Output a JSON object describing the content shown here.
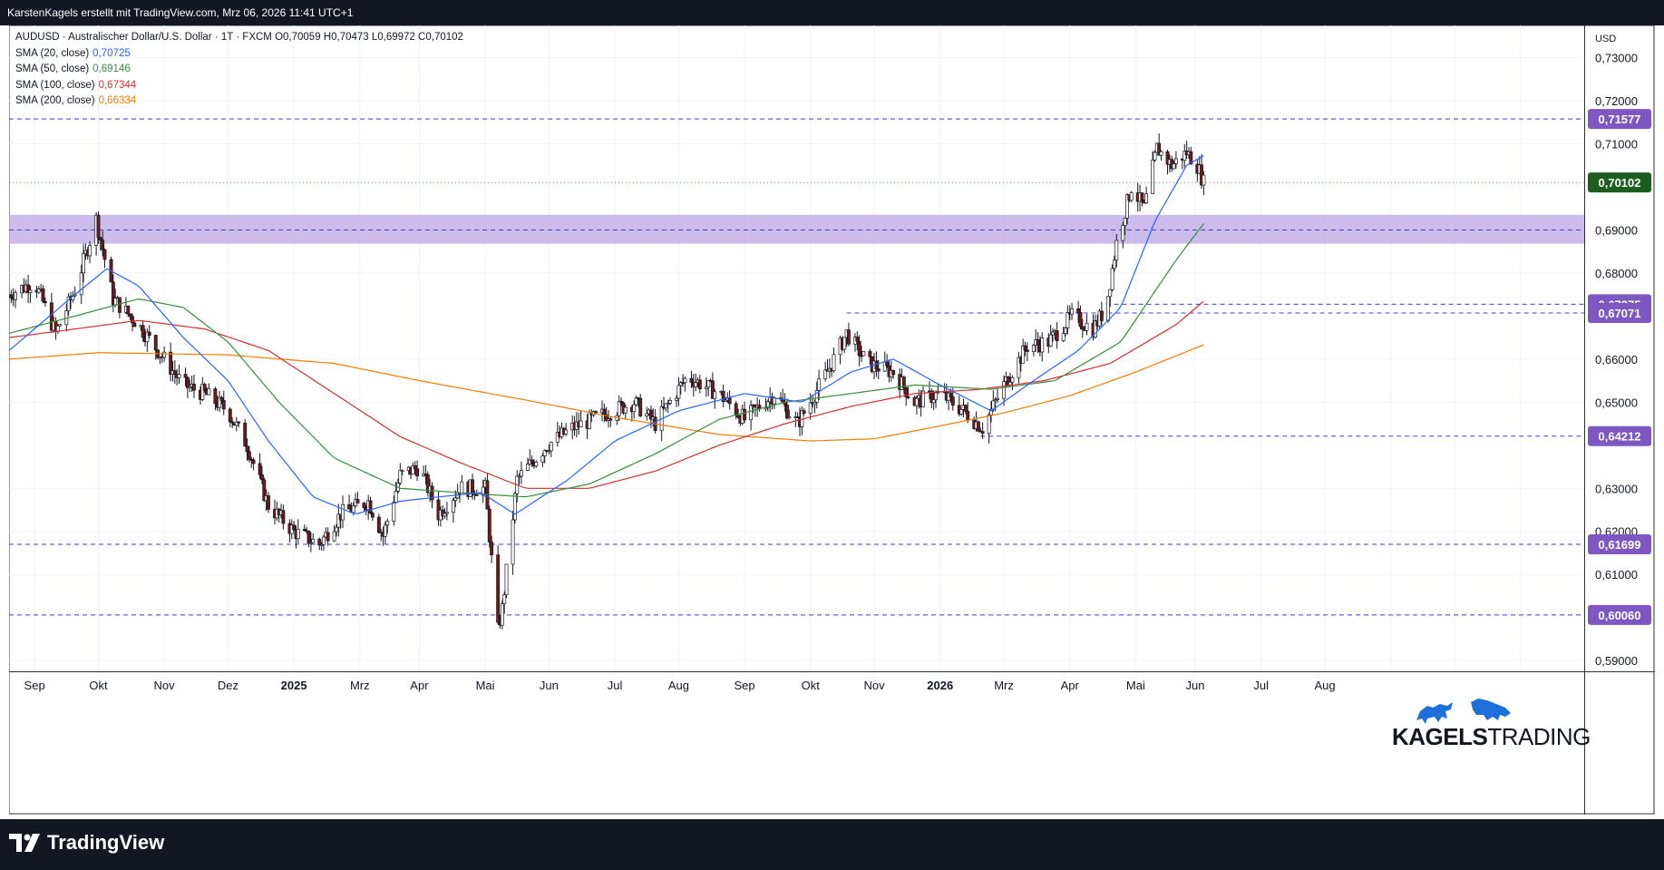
{
  "header": {
    "publisher_line": "KarstenKagels erstellt mit TradingView.com, Mrz 06, 2026 11:41 UTC+1"
  },
  "symbol_line": {
    "symbol": "AUDUSD · Australischer Dollar/U.S. Dollar · 1T · FXCM",
    "open": "O0,70059",
    "high": "H0,70473",
    "low": "L0,69972",
    "close": "C0,70102"
  },
  "indicators": [
    {
      "label": "SMA (20, close)",
      "value": "0,70725",
      "color": "#2962ff"
    },
    {
      "label": "SMA (50, close)",
      "value": "0,69146",
      "color": "#388e3c"
    },
    {
      "label": "SMA (100, close)",
      "value": "0,67344",
      "color": "#d32f2f"
    },
    {
      "label": "SMA (200, close)",
      "value": "0,66334",
      "color": "#f57c00"
    }
  ],
  "price_axis": {
    "currency": "USD",
    "ticks": [
      "0,73000",
      "0,72000",
      "0,71000",
      "0,69000",
      "0,68000",
      "0,66000",
      "0,65000",
      "0,63000",
      "0,62000",
      "0,61000",
      "0,59000"
    ],
    "tick_values": [
      0.73,
      0.72,
      0.71,
      0.69,
      0.68,
      0.66,
      0.65,
      0.63,
      0.62,
      0.61,
      0.59
    ]
  },
  "time_axis": {
    "labels": [
      "Sep",
      "Okt",
      "Nov",
      "Dez",
      "2025",
      "Mrz",
      "Apr",
      "Mai",
      "Jun",
      "Jul",
      "Aug",
      "Sep",
      "Okt",
      "Nov",
      "2026",
      "Mrz",
      "Apr",
      "Mai",
      "Jun",
      "Jul",
      "Aug"
    ],
    "bold_labels": [
      "2025",
      "2026"
    ]
  },
  "brand": {
    "tradingview": "TradingView",
    "logo_word1": "KAGELS",
    "logo_word2": "TRADING"
  },
  "colors": {
    "up_candle": "#ffffff",
    "down_candle": "#6d1c1c",
    "wick": "#131722",
    "level_line": "#3f3fd8",
    "zone": "#b9a6e6",
    "current_price": "#1b5e20",
    "level_label": "#7e57c2",
    "logo_blue": "#1e6fd9"
  },
  "chart_data": {
    "type": "candlestick",
    "symbol": "AUDUSD",
    "timeframe": "1T",
    "x_range": [
      "2024-08-20",
      "2026-08-31"
    ],
    "ylim": [
      0.5875,
      0.7375
    ],
    "grid": true,
    "legend": "top-left",
    "current_price": {
      "value": 0.70102,
      "label": "0,70102"
    },
    "horizontal_levels": [
      {
        "value": 0.71577,
        "label": "0,71577",
        "start": "2024-08-20"
      },
      {
        "value": 0.69,
        "label": "",
        "start": "2024-08-20"
      },
      {
        "value": 0.67275,
        "label": "0,67275",
        "start": "2026-01-18"
      },
      {
        "value": 0.67071,
        "label": "0,67071",
        "start": "2025-09-18"
      },
      {
        "value": 0.64212,
        "label": "0,64212",
        "start": "2025-11-20"
      },
      {
        "value": 0.61699,
        "label": "0,61699",
        "start": "2024-08-20"
      },
      {
        "value": 0.6006,
        "label": "0,60060",
        "start": "2024-08-20"
      }
    ],
    "zone": {
      "from": 0.6868,
      "to": 0.6935
    },
    "price_path": [
      [
        "2024-08-20",
        0.675
      ],
      [
        "2024-09-01",
        0.678
      ],
      [
        "2024-09-11",
        0.666
      ],
      [
        "2024-09-20",
        0.676
      ],
      [
        "2024-09-30",
        0.6925
      ],
      [
        "2024-10-08",
        0.674
      ],
      [
        "2024-10-20",
        0.668
      ],
      [
        "2024-11-01",
        0.66
      ],
      [
        "2024-11-10",
        0.654
      ],
      [
        "2024-11-20",
        0.652
      ],
      [
        "2024-12-01",
        0.648
      ],
      [
        "2024-12-10",
        0.64
      ],
      [
        "2024-12-20",
        0.626
      ],
      [
        "2025-01-01",
        0.62
      ],
      [
        "2025-01-13",
        0.617
      ],
      [
        "2025-01-23",
        0.624
      ],
      [
        "2025-02-05",
        0.627
      ],
      [
        "2025-02-12",
        0.619
      ],
      [
        "2025-02-20",
        0.633
      ],
      [
        "2025-03-01",
        0.635
      ],
      [
        "2025-03-10",
        0.624
      ],
      [
        "2025-03-20",
        0.63
      ],
      [
        "2025-04-01",
        0.63
      ],
      [
        "2025-04-07",
        0.597
      ],
      [
        "2025-04-09",
        0.602
      ],
      [
        "2025-04-16",
        0.632
      ],
      [
        "2025-04-30",
        0.64
      ],
      [
        "2025-05-12",
        0.644
      ],
      [
        "2025-05-26",
        0.647
      ],
      [
        "2025-06-10",
        0.65
      ],
      [
        "2025-06-20",
        0.645
      ],
      [
        "2025-07-05",
        0.656
      ],
      [
        "2025-07-20",
        0.652
      ],
      [
        "2025-08-01",
        0.646
      ],
      [
        "2025-08-15",
        0.652
      ],
      [
        "2025-08-26",
        0.645
      ],
      [
        "2025-09-10",
        0.658
      ],
      [
        "2025-09-18",
        0.666
      ],
      [
        "2025-09-28",
        0.659
      ],
      [
        "2025-10-10",
        0.657
      ],
      [
        "2025-10-20",
        0.65
      ],
      [
        "2025-11-01",
        0.652
      ],
      [
        "2025-11-12",
        0.648
      ],
      [
        "2025-11-21",
        0.644
      ],
      [
        "2025-12-01",
        0.654
      ],
      [
        "2025-12-12",
        0.663
      ],
      [
        "2025-12-22",
        0.664
      ],
      [
        "2026-01-02",
        0.67
      ],
      [
        "2026-01-12",
        0.667
      ],
      [
        "2026-01-18",
        0.672
      ],
      [
        "2026-01-23",
        0.687
      ],
      [
        "2026-01-30",
        0.7
      ],
      [
        "2026-02-05",
        0.695
      ],
      [
        "2026-02-11",
        0.709
      ],
      [
        "2026-02-18",
        0.705
      ],
      [
        "2026-02-25",
        0.708
      ],
      [
        "2026-03-02",
        0.705
      ],
      [
        "2026-03-05",
        0.701
      ]
    ],
    "sma_20": [
      [
        "2024-08-20",
        0.662
      ],
      [
        "2024-09-20",
        0.675
      ],
      [
        "2024-10-05",
        0.681
      ],
      [
        "2024-10-20",
        0.677
      ],
      [
        "2024-11-10",
        0.665
      ],
      [
        "2024-12-01",
        0.655
      ],
      [
        "2024-12-20",
        0.641
      ],
      [
        "2025-01-10",
        0.628
      ],
      [
        "2025-01-30",
        0.624
      ],
      [
        "2025-02-20",
        0.627
      ],
      [
        "2025-03-10",
        0.628
      ],
      [
        "2025-03-30",
        0.629
      ],
      [
        "2025-04-15",
        0.624
      ],
      [
        "2025-05-10",
        0.632
      ],
      [
        "2025-06-01",
        0.641
      ],
      [
        "2025-07-01",
        0.648
      ],
      [
        "2025-08-01",
        0.652
      ],
      [
        "2025-08-28",
        0.65
      ],
      [
        "2025-09-20",
        0.657
      ],
      [
        "2025-10-10",
        0.66
      ],
      [
        "2025-11-01",
        0.654
      ],
      [
        "2025-11-25",
        0.648
      ],
      [
        "2025-12-15",
        0.655
      ],
      [
        "2026-01-05",
        0.662
      ],
      [
        "2026-01-25",
        0.672
      ],
      [
        "2026-02-10",
        0.692
      ],
      [
        "2026-02-25",
        0.705
      ],
      [
        "2026-03-05",
        0.70725
      ]
    ],
    "sma_50": [
      [
        "2024-08-20",
        0.666
      ],
      [
        "2024-09-20",
        0.67
      ],
      [
        "2024-10-20",
        0.674
      ],
      [
        "2024-11-10",
        0.672
      ],
      [
        "2024-12-01",
        0.664
      ],
      [
        "2024-12-25",
        0.65
      ],
      [
        "2025-01-20",
        0.637
      ],
      [
        "2025-02-20",
        0.63
      ],
      [
        "2025-03-20",
        0.629
      ],
      [
        "2025-04-20",
        0.628
      ],
      [
        "2025-05-20",
        0.631
      ],
      [
        "2025-06-20",
        0.638
      ],
      [
        "2025-07-20",
        0.646
      ],
      [
        "2025-08-20",
        0.65
      ],
      [
        "2025-09-20",
        0.652
      ],
      [
        "2025-10-20",
        0.654
      ],
      [
        "2025-11-25",
        0.653
      ],
      [
        "2025-12-25",
        0.655
      ],
      [
        "2026-01-25",
        0.664
      ],
      [
        "2026-02-20",
        0.683
      ],
      [
        "2026-03-05",
        0.69146
      ]
    ],
    "sma_100": [
      [
        "2024-08-20",
        0.665
      ],
      [
        "2024-09-20",
        0.667
      ],
      [
        "2024-10-20",
        0.669
      ],
      [
        "2024-11-20",
        0.667
      ],
      [
        "2024-12-20",
        0.662
      ],
      [
        "2025-01-20",
        0.652
      ],
      [
        "2025-02-20",
        0.642
      ],
      [
        "2025-03-20",
        0.636
      ],
      [
        "2025-04-20",
        0.63
      ],
      [
        "2025-05-20",
        0.63
      ],
      [
        "2025-06-20",
        0.634
      ],
      [
        "2025-07-20",
        0.64
      ],
      [
        "2025-08-20",
        0.645
      ],
      [
        "2025-09-20",
        0.649
      ],
      [
        "2025-10-20",
        0.652
      ],
      [
        "2025-11-20",
        0.653
      ],
      [
        "2025-12-20",
        0.655
      ],
      [
        "2026-01-20",
        0.659
      ],
      [
        "2026-02-20",
        0.668
      ],
      [
        "2026-03-05",
        0.67344
      ]
    ],
    "sma_200": [
      [
        "2024-08-20",
        0.66
      ],
      [
        "2024-10-01",
        0.6615
      ],
      [
        "2024-12-01",
        0.661
      ],
      [
        "2025-01-20",
        0.659
      ],
      [
        "2025-03-01",
        0.655
      ],
      [
        "2025-04-20",
        0.6505
      ],
      [
        "2025-06-01",
        0.6465
      ],
      [
        "2025-07-20",
        0.6425
      ],
      [
        "2025-09-01",
        0.641
      ],
      [
        "2025-10-01",
        0.6415
      ],
      [
        "2025-11-01",
        0.6445
      ],
      [
        "2025-12-01",
        0.6475
      ],
      [
        "2026-01-01",
        0.6515
      ],
      [
        "2026-02-01",
        0.657
      ],
      [
        "2026-03-05",
        0.66334
      ]
    ]
  }
}
